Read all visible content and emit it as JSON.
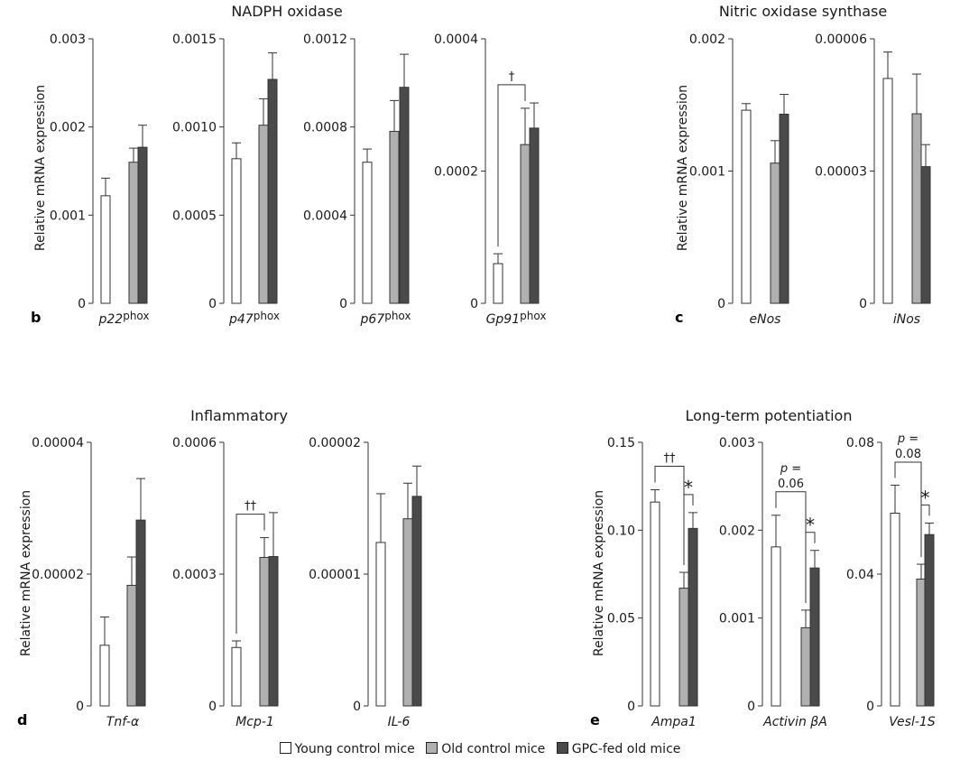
{
  "colors": {
    "young": "#ffffff",
    "old": "#b0b0b0",
    "gpc": "#4a4a4a",
    "stroke": "#333333"
  },
  "legend": {
    "young": "Young control mice",
    "old": "Old control mice",
    "gpc": "GPC-fed old mice"
  },
  "groups": {
    "b": {
      "letter": "b",
      "title": "NADPH oxidase",
      "ylabel": "Relative mRNA expression"
    },
    "c": {
      "letter": "c",
      "title": "Nitric oxidase synthase",
      "ylabel": "Relative mRNA expression"
    },
    "d": {
      "letter": "d",
      "title": "Inflammatory",
      "ylabel": "Relative mRNA expression"
    },
    "e": {
      "letter": "e",
      "title": "Long-term potentiation",
      "ylabel": "Relative mRNA expression"
    }
  },
  "chart_data": [
    {
      "type": "bar",
      "panel": "b",
      "gene": "p22",
      "gene_sup": "phox",
      "ylim": [
        0,
        0.003
      ],
      "ticks": [
        "0",
        "0.001",
        "0.002",
        "0.003"
      ],
      "series": [
        {
          "name": "Young control mice",
          "values": [
            0.00122
          ],
          "error": [
            0.0002
          ]
        },
        {
          "name": "Old control mice",
          "values": [
            0.0016
          ],
          "error": [
            0.00016
          ]
        },
        {
          "name": "GPC-fed old mice",
          "values": [
            0.00177
          ],
          "error": [
            0.00025
          ]
        }
      ],
      "annotations": []
    },
    {
      "type": "bar",
      "panel": "b",
      "gene": "p47",
      "gene_sup": "phox",
      "ylim": [
        0,
        0.0015
      ],
      "ticks": [
        "0",
        "0.0005",
        "0.0010",
        "0.0015"
      ],
      "series": [
        {
          "name": "Young control mice",
          "values": [
            0.00082
          ],
          "error": [
            9e-05
          ]
        },
        {
          "name": "Old control mice",
          "values": [
            0.00101
          ],
          "error": [
            0.00015
          ]
        },
        {
          "name": "GPC-fed old mice",
          "values": [
            0.00127
          ],
          "error": [
            0.00015
          ]
        }
      ],
      "annotations": []
    },
    {
      "type": "bar",
      "panel": "b",
      "gene": "p67",
      "gene_sup": "phox",
      "ylim": [
        0,
        0.0012
      ],
      "ticks": [
        "0",
        "0.0004",
        "0.0008",
        "0.0012"
      ],
      "series": [
        {
          "name": "Young control mice",
          "values": [
            0.00064
          ],
          "error": [
            6e-05
          ]
        },
        {
          "name": "Old control mice",
          "values": [
            0.00078
          ],
          "error": [
            0.00014
          ]
        },
        {
          "name": "GPC-fed old mice",
          "values": [
            0.00098
          ],
          "error": [
            0.00015
          ]
        }
      ],
      "annotations": []
    },
    {
      "type": "bar",
      "panel": "b",
      "gene": "Gp91",
      "gene_sup": "phox",
      "ylim": [
        0,
        0.0004
      ],
      "ticks": [
        "0",
        "0.0002",
        "0.0004"
      ],
      "series": [
        {
          "name": "Young control mice",
          "values": [
            6e-05
          ],
          "error": [
            1.5e-05
          ]
        },
        {
          "name": "Old control mice",
          "values": [
            0.00024
          ],
          "error": [
            5.5e-05
          ]
        },
        {
          "name": "GPC-fed old mice",
          "values": [
            0.000265
          ],
          "error": [
            3.8e-05
          ]
        }
      ],
      "annotations": [
        {
          "from": 0,
          "to": 1,
          "label": "†"
        }
      ]
    },
    {
      "type": "bar",
      "panel": "c",
      "gene": "eNos",
      "gene_sup": "",
      "ylim": [
        0,
        0.002
      ],
      "ticks": [
        "0",
        "0.001",
        "0.002"
      ],
      "series": [
        {
          "name": "Young control mice",
          "values": [
            0.00146
          ],
          "error": [
            5e-05
          ]
        },
        {
          "name": "Old control mice",
          "values": [
            0.00106
          ],
          "error": [
            0.00017
          ]
        },
        {
          "name": "GPC-fed old mice",
          "values": [
            0.00143
          ],
          "error": [
            0.00015
          ]
        }
      ],
      "annotations": []
    },
    {
      "type": "bar",
      "panel": "c",
      "gene": "iNos",
      "gene_sup": "",
      "ylim": [
        0,
        6e-05
      ],
      "ticks": [
        "0",
        "0.00003",
        "0.00006"
      ],
      "series": [
        {
          "name": "Young control mice",
          "values": [
            5.1e-05
          ],
          "error": [
            6e-06
          ]
        },
        {
          "name": "Old control mice",
          "values": [
            4.3e-05
          ],
          "error": [
            9e-06
          ]
        },
        {
          "name": "GPC-fed old mice",
          "values": [
            3.1e-05
          ],
          "error": [
            5e-06
          ]
        }
      ],
      "annotations": []
    },
    {
      "type": "bar",
      "panel": "d",
      "gene": "Tnf-α",
      "gene_sup": "",
      "ylim": [
        0,
        4e-05
      ],
      "ticks": [
        "0",
        "0.00002",
        "0.00004"
      ],
      "series": [
        {
          "name": "Young control mice",
          "values": [
            9.2e-06
          ],
          "error": [
            4.3e-06
          ]
        },
        {
          "name": "Old control mice",
          "values": [
            1.83e-05
          ],
          "error": [
            4.3e-06
          ]
        },
        {
          "name": "GPC-fed old mice",
          "values": [
            2.82e-05
          ],
          "error": [
            6.3e-06
          ]
        }
      ],
      "annotations": []
    },
    {
      "type": "bar",
      "panel": "d",
      "gene": "Mcp-1",
      "gene_sup": "",
      "ylim": [
        0,
        0.0006
      ],
      "ticks": [
        "0",
        "0.0003",
        "0.0006"
      ],
      "series": [
        {
          "name": "Young control mice",
          "values": [
            0.000133
          ],
          "error": [
            1.5e-05
          ]
        },
        {
          "name": "Old control mice",
          "values": [
            0.000338
          ],
          "error": [
            4.5e-05
          ]
        },
        {
          "name": "GPC-fed old mice",
          "values": [
            0.00034
          ],
          "error": [
            0.0001
          ]
        }
      ],
      "annotations": [
        {
          "from": 0,
          "to": 1,
          "label": "††"
        }
      ]
    },
    {
      "type": "bar",
      "panel": "d",
      "gene": "IL-6",
      "gene_sup": "",
      "ylim": [
        0,
        2e-05
      ],
      "ticks": [
        "0",
        "0.00001",
        "0.00002"
      ],
      "series": [
        {
          "name": "Young control mice",
          "values": [
            1.24e-05
          ],
          "error": [
            3.7e-06
          ]
        },
        {
          "name": "Old control mice",
          "values": [
            1.42e-05
          ],
          "error": [
            2.7e-06
          ]
        },
        {
          "name": "GPC-fed old mice",
          "values": [
            1.59e-05
          ],
          "error": [
            2.3e-06
          ]
        }
      ],
      "annotations": []
    },
    {
      "type": "bar",
      "panel": "e",
      "gene": "Ampa1",
      "gene_sup": "",
      "ylim": [
        0,
        0.15
      ],
      "ticks": [
        "0",
        "0.05",
        "0.10",
        "0.15"
      ],
      "series": [
        {
          "name": "Young control mice",
          "values": [
            0.116
          ],
          "error": [
            0.007
          ]
        },
        {
          "name": "Old control mice",
          "values": [
            0.067
          ],
          "error": [
            0.009
          ]
        },
        {
          "name": "GPC-fed old mice",
          "values": [
            0.101
          ],
          "error": [
            0.009
          ]
        }
      ],
      "annotations": [
        {
          "from": 0,
          "to": 1,
          "label": "††"
        },
        {
          "from": 1,
          "to": 2,
          "label": "*"
        }
      ]
    },
    {
      "type": "bar",
      "panel": "e",
      "gene": "Activin βA",
      "gene_sup": "",
      "ylim": [
        0,
        0.003
      ],
      "ticks": [
        "0",
        "0.001",
        "0.002",
        "0.003"
      ],
      "series": [
        {
          "name": "Young control mice",
          "values": [
            0.00181
          ],
          "error": [
            0.00036
          ]
        },
        {
          "name": "Old control mice",
          "values": [
            0.00089
          ],
          "error": [
            0.0002
          ]
        },
        {
          "name": "GPC-fed old mice",
          "values": [
            0.00157
          ],
          "error": [
            0.0002
          ]
        }
      ],
      "annotations": [
        {
          "from": 0,
          "to": 1,
          "label": "0.06",
          "prefix": "p ="
        },
        {
          "from": 1,
          "to": 2,
          "label": "*"
        }
      ]
    },
    {
      "type": "bar",
      "panel": "e",
      "gene": "Vesl-1S",
      "gene_sup": "",
      "ylim": [
        0,
        0.08
      ],
      "ticks": [
        "0",
        "0.04",
        "0.08"
      ],
      "series": [
        {
          "name": "Young control mice",
          "values": [
            0.0585
          ],
          "error": [
            0.0085
          ]
        },
        {
          "name": "Old control mice",
          "values": [
            0.0385
          ],
          "error": [
            0.0045
          ]
        },
        {
          "name": "GPC-fed old mice",
          "values": [
            0.052
          ],
          "error": [
            0.0035
          ]
        }
      ],
      "annotations": [
        {
          "from": 0,
          "to": 1,
          "label": "0.08",
          "prefix": "p ="
        },
        {
          "from": 1,
          "to": 2,
          "label": "*"
        }
      ]
    }
  ]
}
